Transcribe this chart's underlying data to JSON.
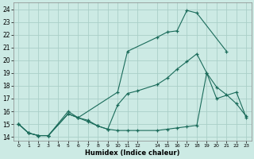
{
  "xlabel": "Humidex (Indice chaleur)",
  "bg_color": "#cceae4",
  "grid_color": "#aacfc8",
  "line_color": "#1a6b5a",
  "xlim": [
    -0.5,
    23.5
  ],
  "ylim": [
    13.7,
    24.5
  ],
  "xtick_positions": [
    0,
    1,
    2,
    3,
    4,
    5,
    6,
    7,
    8,
    9,
    10,
    11,
    12,
    14,
    15,
    16,
    17,
    18,
    19,
    20,
    21,
    22,
    23
  ],
  "xtick_labels": [
    "0",
    "1",
    "2",
    "3",
    "4",
    "5",
    "6",
    "7",
    "8",
    "9",
    "10",
    "11",
    "12",
    "14",
    "15",
    "16",
    "17",
    "18",
    "19",
    "20",
    "21",
    "22",
    "23"
  ],
  "yticks": [
    14,
    15,
    16,
    17,
    18,
    19,
    20,
    21,
    22,
    23,
    24
  ],
  "line1_x": [
    0,
    1,
    2,
    3,
    5,
    6,
    10,
    11,
    14,
    15,
    16,
    17,
    18,
    21
  ],
  "line1_y": [
    15.0,
    14.3,
    14.1,
    14.1,
    16.0,
    15.5,
    17.5,
    20.7,
    21.8,
    22.2,
    22.3,
    23.9,
    23.7,
    20.7
  ],
  "line2_x": [
    0,
    1,
    2,
    3,
    5,
    6,
    7,
    8,
    9,
    10,
    11,
    12,
    14,
    15,
    16,
    17,
    18,
    19,
    20,
    21,
    22,
    23
  ],
  "line2_y": [
    15.0,
    14.3,
    14.1,
    14.1,
    15.8,
    15.5,
    15.2,
    14.85,
    14.6,
    14.5,
    14.5,
    14.5,
    14.5,
    14.6,
    14.7,
    14.8,
    14.9,
    19.0,
    17.9,
    17.3,
    16.6,
    15.6
  ],
  "line3_x": [
    0,
    1,
    2,
    3,
    5,
    6,
    7,
    8,
    9,
    10,
    11,
    12,
    14,
    15,
    16,
    17,
    18,
    19,
    20,
    22,
    23
  ],
  "line3_y": [
    15.0,
    14.3,
    14.1,
    14.1,
    15.8,
    15.5,
    15.3,
    14.85,
    14.6,
    16.5,
    17.4,
    17.6,
    18.1,
    18.6,
    19.3,
    19.9,
    20.5,
    19.0,
    17.0,
    17.5,
    15.5
  ]
}
